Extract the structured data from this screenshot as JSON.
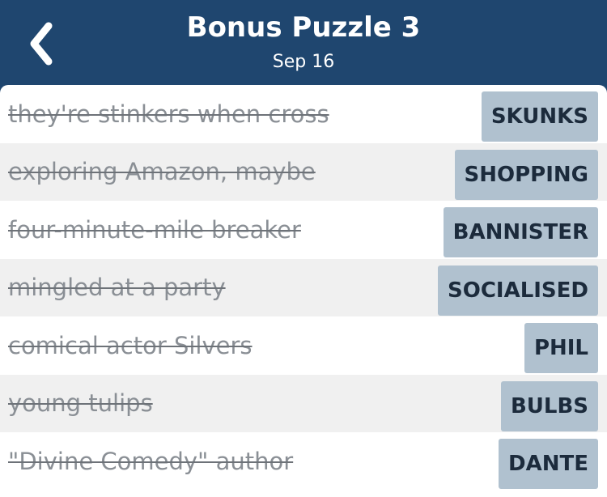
{
  "header": {
    "title": "Bonus Puzzle 3",
    "date": "Sep 16",
    "back_icon": "chevron-left-icon"
  },
  "colors": {
    "header_bg": "#1f466f",
    "answer_bg": "#b0c1cf",
    "alt_row": "#f0f0f0"
  },
  "clues": [
    {
      "clue": "they're stinkers when cross",
      "answer": "SKUNKS"
    },
    {
      "clue": "exploring Amazon, maybe",
      "answer": "SHOPPING"
    },
    {
      "clue": "four-minute-mile breaker",
      "answer": "BANNISTER"
    },
    {
      "clue": "mingled at a party",
      "answer": "SOCIALISED"
    },
    {
      "clue": "comical actor Silvers",
      "answer": "PHIL"
    },
    {
      "clue": "young tulips",
      "answer": "BULBS"
    },
    {
      "clue": "\"Divine Comedy\" author",
      "answer": "DANTE"
    }
  ]
}
